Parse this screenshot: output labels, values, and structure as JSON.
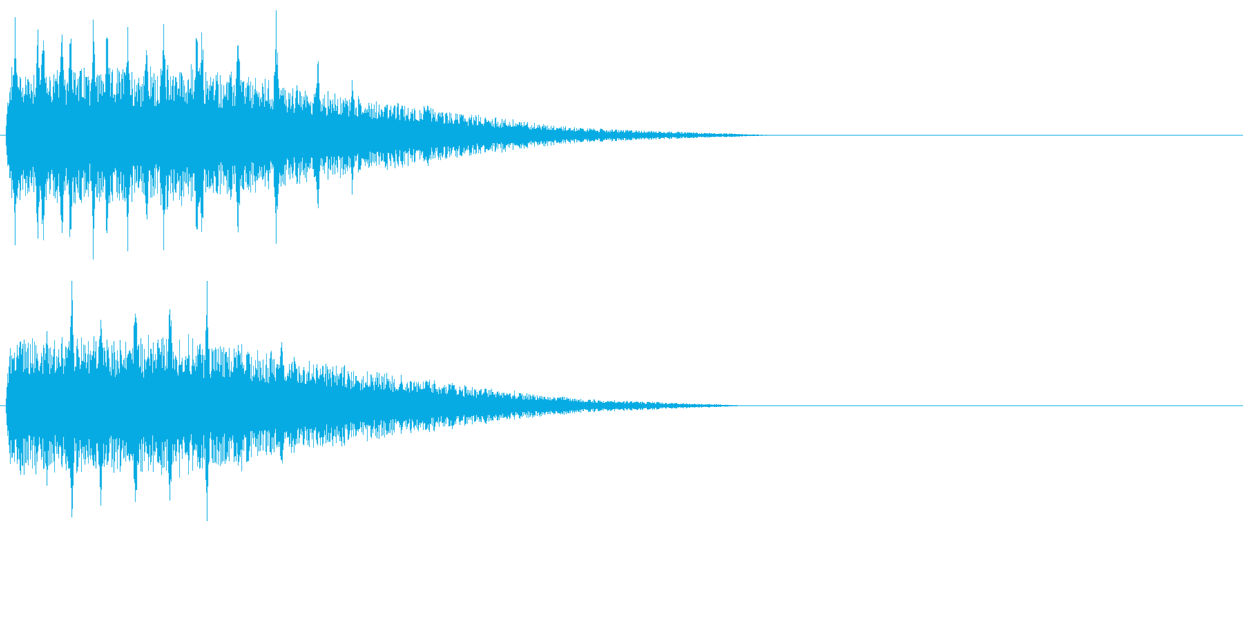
{
  "waveform": {
    "color": "#06abe3",
    "channels": [
      {
        "name": ""
      },
      {
        "name": ""
      }
    ]
  }
}
